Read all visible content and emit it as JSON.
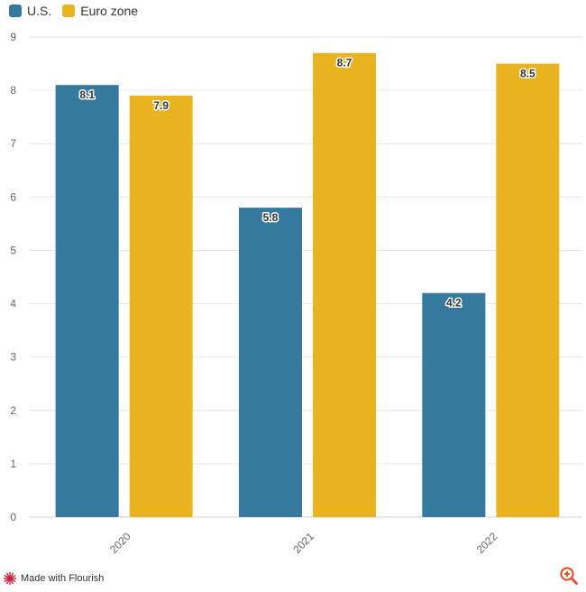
{
  "colors": {
    "us": "#35799f",
    "euro": "#eab421",
    "grid": "#e6e6e6",
    "flourish": "#c8203a",
    "zoom": "#e8532f"
  },
  "chart_data": {
    "type": "bar",
    "title": "",
    "xlabel": "",
    "ylabel": "",
    "categories": [
      "2020",
      "2021",
      "2022"
    ],
    "series": [
      {
        "name": "U.S.",
        "values": [
          8.1,
          5.8,
          4.2
        ],
        "labels": [
          "8.1",
          "5.8",
          "4.2"
        ]
      },
      {
        "name": "Euro zone",
        "values": [
          7.9,
          8.7,
          8.5
        ],
        "labels": [
          "7.9",
          "8.7",
          "8.5"
        ]
      }
    ],
    "ylim": [
      0,
      9
    ],
    "yticks": [
      "0",
      "1",
      "2",
      "3",
      "4",
      "5",
      "6",
      "7",
      "8",
      "9"
    ],
    "legend": "top-left",
    "grid": true
  },
  "footer": {
    "label": "Made with Flourish",
    "icon": "flourish-logo-icon"
  },
  "zoom": {
    "icon": "zoom-in-icon"
  }
}
